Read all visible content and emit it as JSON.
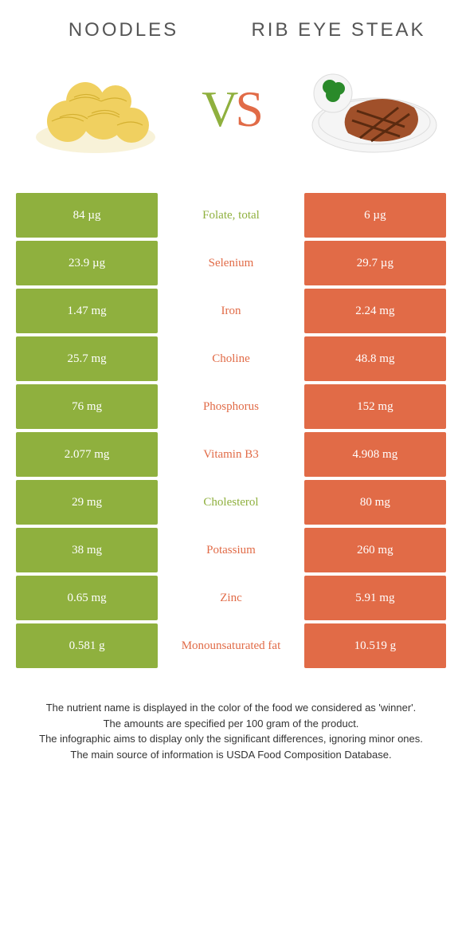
{
  "header": {
    "left_title": "Noodles",
    "right_title": "Rib eye steak",
    "vs_v": "V",
    "vs_s": "S"
  },
  "colors": {
    "left": "#8fb03e",
    "right": "#e16b47",
    "background": "#ffffff",
    "text": "#333333"
  },
  "table": {
    "rows": [
      {
        "left": "84 µg",
        "label": "Folate, total",
        "right": "6 µg",
        "winner": "left"
      },
      {
        "left": "23.9 µg",
        "label": "Selenium",
        "right": "29.7 µg",
        "winner": "right"
      },
      {
        "left": "1.47 mg",
        "label": "Iron",
        "right": "2.24 mg",
        "winner": "right"
      },
      {
        "left": "25.7 mg",
        "label": "Choline",
        "right": "48.8 mg",
        "winner": "right"
      },
      {
        "left": "76 mg",
        "label": "Phosphorus",
        "right": "152 mg",
        "winner": "right"
      },
      {
        "left": "2.077 mg",
        "label": "Vitamin B3",
        "right": "4.908 mg",
        "winner": "right"
      },
      {
        "left": "29 mg",
        "label": "Cholesterol",
        "right": "80 mg",
        "winner": "left"
      },
      {
        "left": "38 mg",
        "label": "Potassium",
        "right": "260 mg",
        "winner": "right"
      },
      {
        "left": "0.65 mg",
        "label": "Zinc",
        "right": "5.91 mg",
        "winner": "right"
      },
      {
        "left": "0.581 g",
        "label": "Monounsaturated fat",
        "right": "10.519 g",
        "winner": "right"
      }
    ]
  },
  "footer": {
    "line1": "The nutrient name is displayed in the color of the food we considered as 'winner'.",
    "line2": "The amounts are specified per 100 gram of the product.",
    "line3": "The infographic aims to display only the significant differences, ignoring minor ones.",
    "line4": "The main source of information is USDA Food Composition Database."
  }
}
